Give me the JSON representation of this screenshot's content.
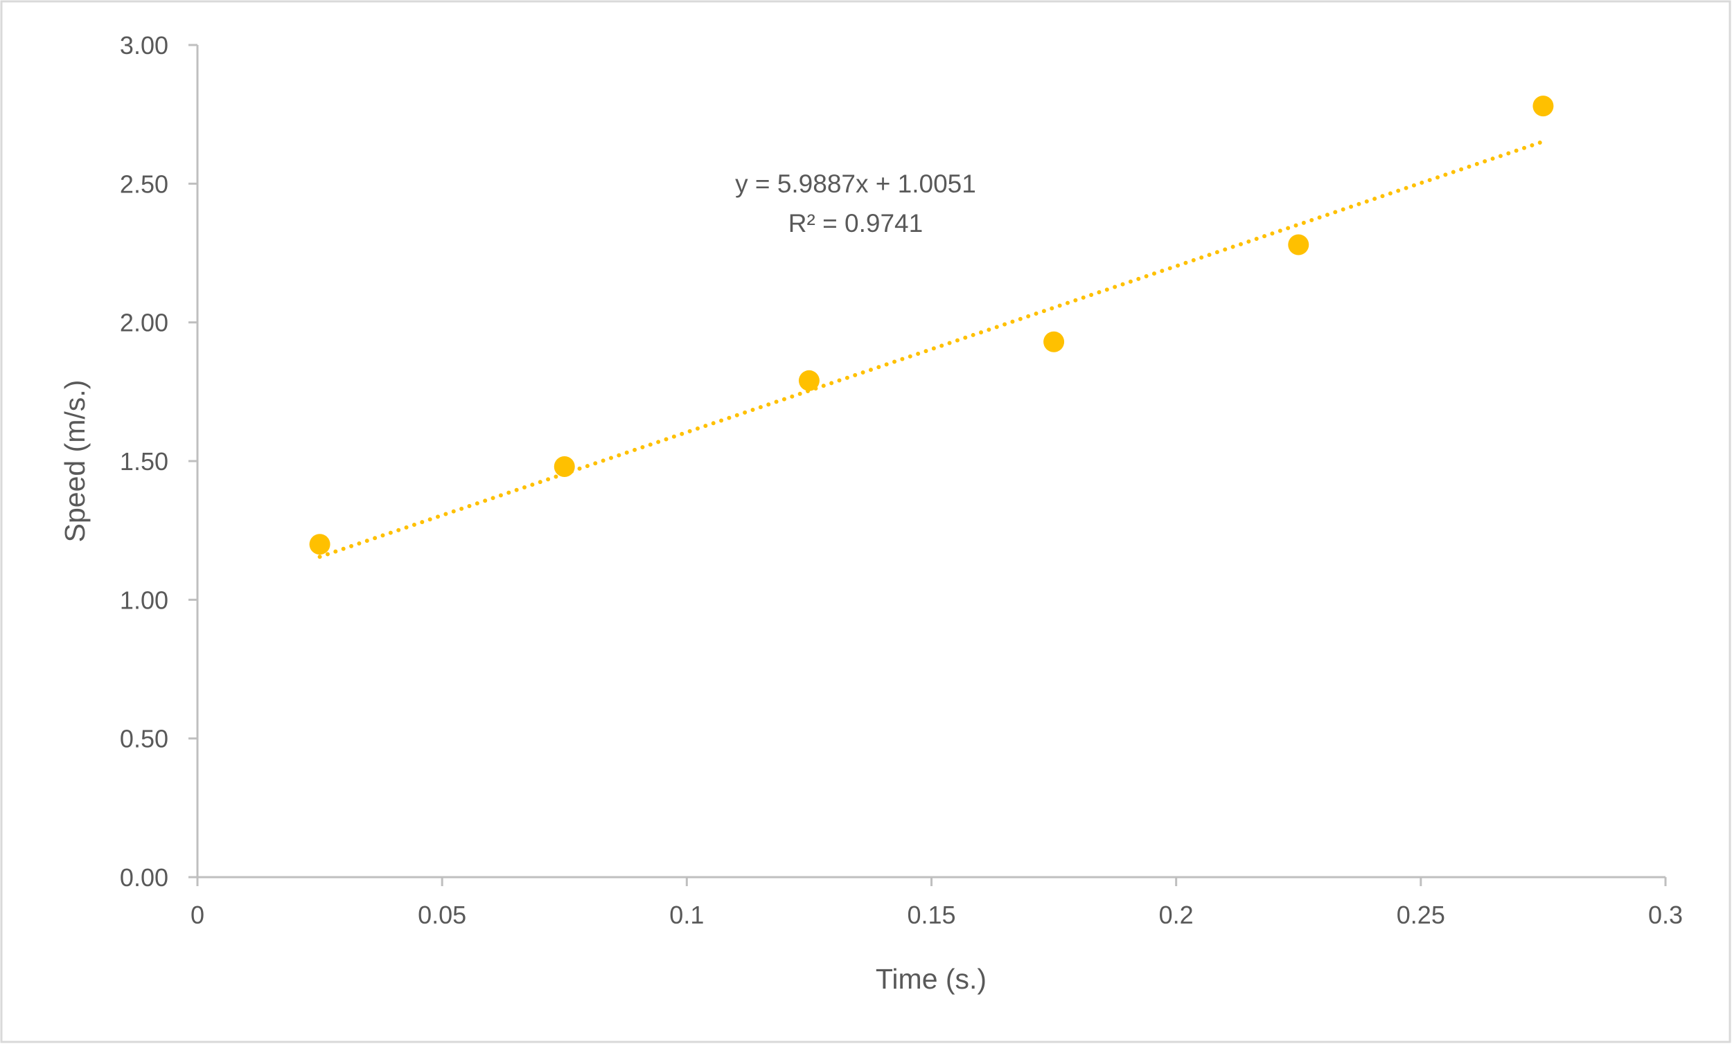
{
  "chart_data": {
    "type": "scatter",
    "title": "",
    "xlabel": "Time (s.)",
    "ylabel": "Speed (m/s.)",
    "xlim": [
      0,
      0.3
    ],
    "ylim": [
      0,
      3
    ],
    "x_ticks": [
      "0",
      "0.05",
      "0.1",
      "0.15",
      "0.2",
      "0.25",
      "0.3"
    ],
    "y_ticks": [
      "0.00",
      "0.50",
      "1.00",
      "1.50",
      "2.00",
      "2.50",
      "3.00"
    ],
    "grid": false,
    "legend": "none",
    "marker_color": "#FFC000",
    "series": [
      {
        "x": [
          0.025,
          0.075,
          0.125,
          0.175,
          0.225,
          0.275
        ],
        "y": [
          1.2,
          1.48,
          1.79,
          1.93,
          2.28,
          2.78
        ]
      }
    ],
    "trendline": {
      "type": "linear",
      "style": "dotted",
      "slope": 5.9887,
      "intercept": 1.0051,
      "x_range": [
        0.025,
        0.275
      ],
      "equation_label": "y = 5.9887x + 1.0051",
      "r2_label": "R² = 0.9741"
    }
  }
}
